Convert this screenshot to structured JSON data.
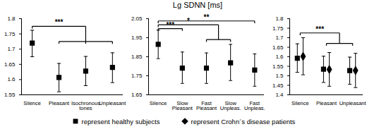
{
  "chart_data": [
    {
      "type": "scatter",
      "categories": [
        "Silence",
        "Pleasant",
        "Isochronous tones",
        "Unpleasant"
      ],
      "ylim": [
        1.55,
        1.8
      ],
      "yticks": [
        1.55,
        1.6,
        1.65,
        1.7,
        1.75,
        1.8
      ],
      "series": [
        {
          "name": "represent healthy subjects",
          "color": "#000000",
          "marker": "square",
          "values": [
            1.72,
            1.607,
            1.628,
            1.64
          ],
          "lower": [
            1.675,
            1.56,
            1.58,
            1.59
          ],
          "upper": [
            1.762,
            1.653,
            1.676,
            1.688
          ]
        }
      ],
      "annotations": [
        {
          "text": "***",
          "from": [
            0
          ],
          "to": [
            1,
            2,
            3
          ],
          "y": 1.775,
          "y_to": 1.725
        }
      ]
    },
    {
      "type": "scatter",
      "title": "Lg SDNN [ms]",
      "categories": [
        "Silence",
        "Slow Pleasant",
        "Fast Pleasant",
        "Slow Unpleas.",
        "Fast Unpleas."
      ],
      "ylim": [
        1.65,
        2.05
      ],
      "yticks": [
        1.65,
        1.75,
        1.85,
        1.95,
        2.05
      ],
      "series": [
        {
          "name": "represent healthy subjects",
          "color": "#000000",
          "marker": "square",
          "values": [
            1.915,
            1.79,
            1.79,
            1.818,
            1.78
          ],
          "lower": [
            1.84,
            1.71,
            1.71,
            1.725,
            1.695
          ],
          "upper": [
            1.99,
            1.875,
            1.87,
            1.915,
            1.865
          ]
        }
      ],
      "annotations": [
        {
          "text": "***",
          "from": [
            0
          ],
          "to": [
            1
          ],
          "y": 1.998
        },
        {
          "text": "*",
          "from": [
            0
          ],
          "to": [
            2,
            3
          ],
          "y": 2.018,
          "y_to": 1.94
        },
        {
          "text": "**",
          "from": [
            0
          ],
          "to": [
            4
          ],
          "y": 2.038
        }
      ]
    },
    {
      "type": "scatter",
      "categories": [
        "Silence",
        "Pleasant",
        "Unpleasant"
      ],
      "ylim": [
        1.4,
        1.8
      ],
      "yticks": [
        1.4,
        1.45,
        1.5,
        1.55,
        1.6,
        1.65,
        1.7,
        1.75,
        1.8
      ],
      "series": [
        {
          "name": "represent healthy subjects",
          "color": "#000000",
          "marker": "square",
          "values": [
            1.592,
            1.535,
            1.527
          ],
          "lower": [
            1.518,
            1.465,
            1.455
          ],
          "upper": [
            1.668,
            1.603,
            1.598
          ]
        },
        {
          "name": "represent Crohn´s disease patients",
          "color": "#000000",
          "marker": "diamond",
          "values": [
            1.602,
            1.533,
            1.528
          ],
          "lower": [
            1.505,
            1.445,
            1.438
          ],
          "upper": [
            1.7,
            1.622,
            1.618
          ]
        }
      ],
      "annotations": [
        {
          "text": "***",
          "from": [
            0
          ],
          "to": [
            1,
            2
          ],
          "y": 1.725,
          "y_to": 1.67
        }
      ]
    }
  ]
}
